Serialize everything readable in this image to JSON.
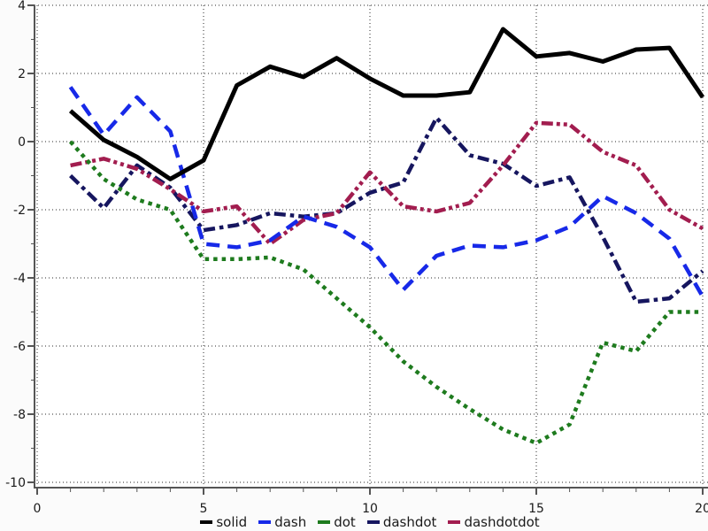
{
  "chart_data": {
    "type": "line",
    "x": [
      1,
      2,
      3,
      4,
      5,
      6,
      7,
      8,
      9,
      10,
      11,
      12,
      13,
      14,
      15,
      16,
      17,
      18,
      19,
      20
    ],
    "series": [
      {
        "name": "solid",
        "style": "solid",
        "color": "#000000",
        "values": [
          0.9,
          0.05,
          -0.45,
          -1.1,
          -0.55,
          1.65,
          2.2,
          1.9,
          2.45,
          1.85,
          1.35,
          1.35,
          1.45,
          3.3,
          2.5,
          2.6,
          2.35,
          2.7,
          2.75,
          1.3
        ]
      },
      {
        "name": "dash",
        "style": "dash",
        "color": "#1729e8",
        "values": [
          1.6,
          0.2,
          1.3,
          0.3,
          -3.0,
          -3.1,
          -2.9,
          -2.2,
          -2.5,
          -3.1,
          -4.35,
          -3.35,
          -3.05,
          -3.1,
          -2.9,
          -2.5,
          -1.6,
          -2.1,
          -2.85,
          -4.55
        ]
      },
      {
        "name": "dot",
        "style": "dot",
        "color": "#1e7b1e",
        "values": [
          0.0,
          -1.1,
          -1.7,
          -2.0,
          -3.45,
          -3.45,
          -3.4,
          -3.75,
          -4.6,
          -5.45,
          -6.45,
          -7.2,
          -7.85,
          -8.45,
          -8.85,
          -8.3,
          -5.9,
          -6.15,
          -5.0,
          -5.0
        ]
      },
      {
        "name": "dashdot",
        "style": "dashdot",
        "color": "#16165f",
        "values": [
          -1.0,
          -1.95,
          -0.7,
          -1.35,
          -2.6,
          -2.45,
          -2.1,
          -2.2,
          -2.1,
          -1.5,
          -1.2,
          0.7,
          -0.4,
          -0.65,
          -1.3,
          -1.05,
          -2.8,
          -4.7,
          -4.6,
          -3.8
        ]
      },
      {
        "name": "dashdotdot",
        "style": "dashdotdot",
        "color": "#a21d4f",
        "values": [
          -0.7,
          -0.5,
          -0.8,
          -1.4,
          -2.05,
          -1.9,
          -3.0,
          -2.3,
          -2.1,
          -0.9,
          -1.9,
          -2.05,
          -1.8,
          -0.7,
          0.55,
          0.5,
          -0.3,
          -0.7,
          -2.0,
          -2.55
        ]
      }
    ],
    "title": "",
    "xlabel": "",
    "ylabel": "",
    "xlim": [
      0,
      20.15
    ],
    "ylim": [
      -10.15,
      4.0
    ],
    "x_major_ticks": [
      0,
      5,
      10,
      15,
      20
    ],
    "x_major_labels": [
      "0",
      "5",
      "10",
      "15",
      "20"
    ],
    "x_minor_step": 1,
    "y_major_ticks": [
      4,
      2,
      0,
      -2,
      -4,
      -6,
      -8,
      -10
    ],
    "y_major_labels": [
      "4",
      "2",
      "0",
      "-2",
      "-4",
      "-6",
      "-8",
      "-10"
    ],
    "y_minor_ticks": [
      3,
      1,
      -1,
      -3,
      -5,
      -7,
      -9
    ],
    "grid": "dotted-major-both",
    "legend_position": "bottom-center",
    "legend": [
      {
        "label": "solid",
        "color": "#000000"
      },
      {
        "label": "dash",
        "color": "#1729e8"
      },
      {
        "label": "dot",
        "color": "#1e7b1e"
      },
      {
        "label": "dashdot",
        "color": "#16165f"
      },
      {
        "label": "dashdotdot",
        "color": "#a21d4f"
      }
    ]
  },
  "colors": {
    "background": "#fbfbfb",
    "plot_background": "#ffffff",
    "spine": "#555555",
    "grid": "#2a2a2a",
    "tick_label": "#1a1a1a"
  }
}
